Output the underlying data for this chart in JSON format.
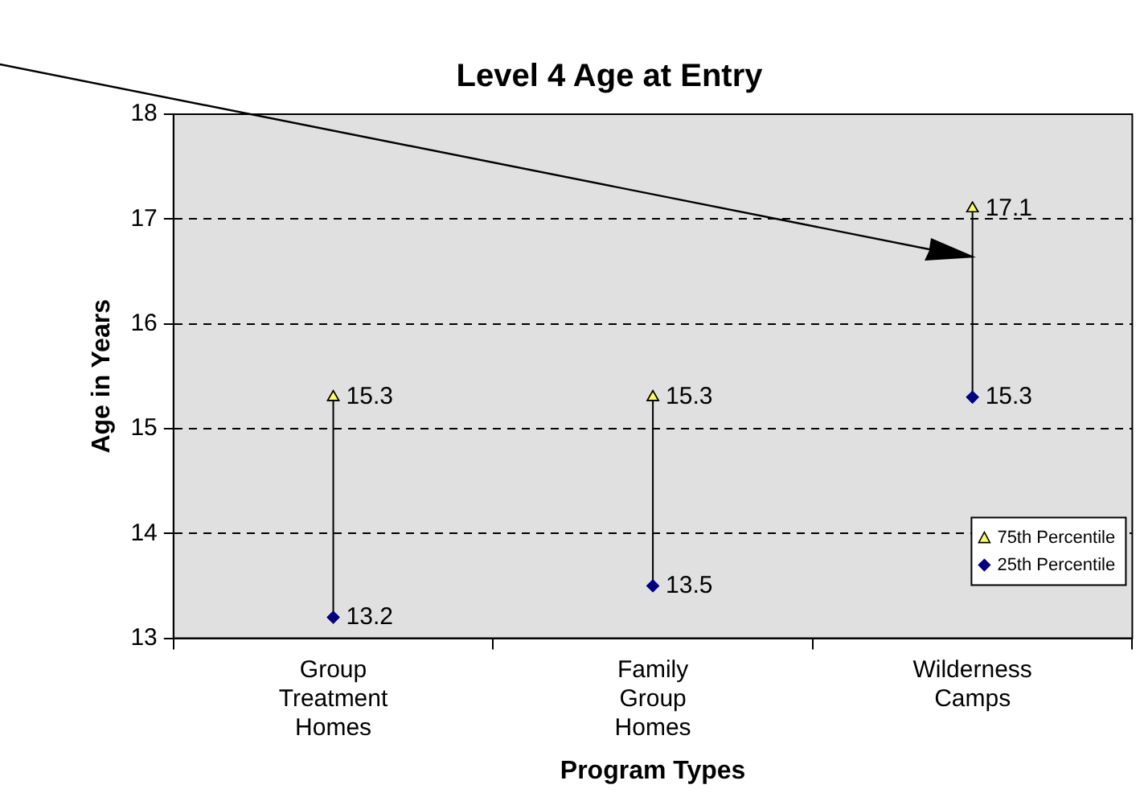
{
  "chart_data": {
    "type": "scatter",
    "title": "Level 4 Age at Entry",
    "xlabel": "Program Types",
    "ylabel": "Age in Years",
    "categories": [
      "Group Treatment Homes",
      "Family Group Homes",
      "Wilderness Camps"
    ],
    "series": [
      {
        "name": "75th Percentile",
        "color": "#ffff66",
        "marker": "triangle",
        "values": [
          15.3,
          15.3,
          17.1
        ]
      },
      {
        "name": "25th Percentile",
        "color": "#000080",
        "marker": "diamond",
        "values": [
          13.2,
          13.5,
          15.3
        ]
      }
    ],
    "ylim": [
      13,
      18
    ],
    "yticks": [
      13,
      14,
      15,
      16,
      17,
      18
    ],
    "grid": "y",
    "legend": "bottom right",
    "data_labels": true
  }
}
